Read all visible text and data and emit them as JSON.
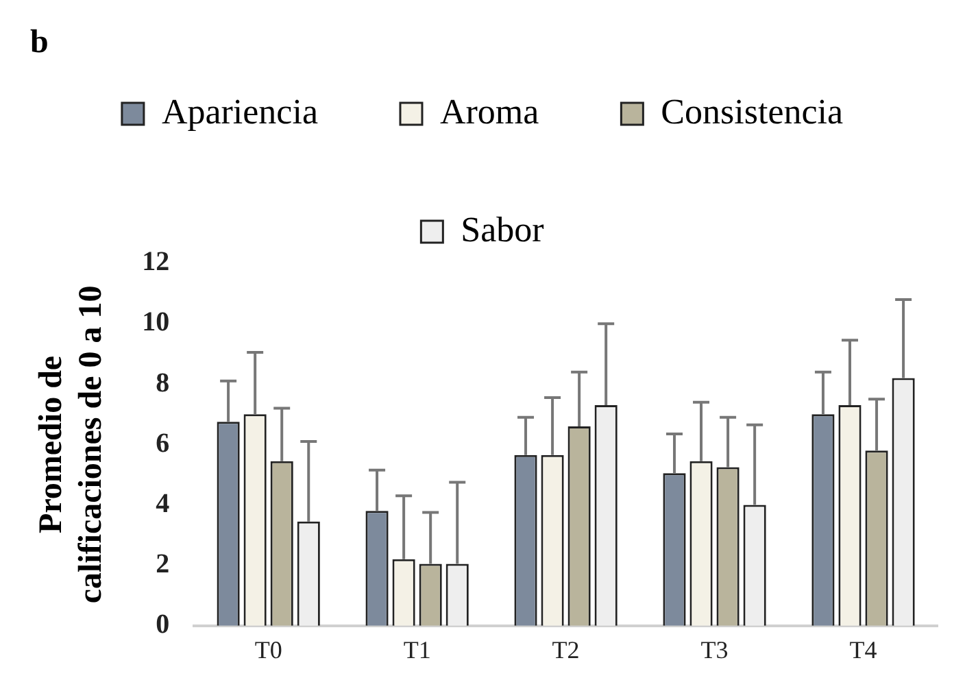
{
  "chart_data": {
    "type": "bar",
    "ylabel": "Promedio de\ncalificaciones de 0 a 10",
    "annotations": [
      "b"
    ],
    "categories": [
      "T0",
      "T1",
      "T2",
      "T3",
      "T4"
    ],
    "series": [
      {
        "name": "Apariencia",
        "color": "#7d8a9c",
        "values": [
          6.75,
          3.8,
          5.65,
          5.05,
          7.0
        ],
        "errors": [
          [
            6.75,
            8.1
          ],
          [
            3.8,
            5.15
          ],
          [
            5.65,
            6.9
          ],
          [
            5.05,
            6.35
          ],
          [
            7.0,
            8.4
          ]
        ]
      },
      {
        "name": "Aroma",
        "color": "#f4f1e6",
        "values": [
          7.0,
          2.2,
          5.65,
          5.45,
          7.3
        ],
        "errors": [
          [
            7.0,
            9.05
          ],
          [
            2.2,
            4.3
          ],
          [
            5.65,
            7.55
          ],
          [
            5.45,
            7.4
          ],
          [
            7.3,
            9.45
          ]
        ]
      },
      {
        "name": "Consistencia",
        "color": "#b9b49c",
        "values": [
          5.45,
          2.05,
          6.6,
          5.25,
          5.8
        ],
        "errors": [
          [
            5.45,
            7.2
          ],
          [
            2.05,
            3.75
          ],
          [
            6.6,
            8.4
          ],
          [
            5.25,
            6.9
          ],
          [
            5.8,
            7.5
          ]
        ]
      },
      {
        "name": "Sabor",
        "color": "#eeeeee",
        "values": [
          3.45,
          2.05,
          7.3,
          4.0,
          8.2
        ],
        "errors": [
          [
            3.45,
            6.1
          ],
          [
            2.05,
            4.75
          ],
          [
            7.3,
            10.0
          ],
          [
            4.0,
            6.65
          ],
          [
            8.2,
            10.8
          ]
        ]
      }
    ],
    "ylim": [
      0,
      12
    ],
    "yticks": [
      0,
      2,
      4,
      6,
      8,
      10,
      12
    ],
    "grid": false,
    "legend": "top"
  }
}
